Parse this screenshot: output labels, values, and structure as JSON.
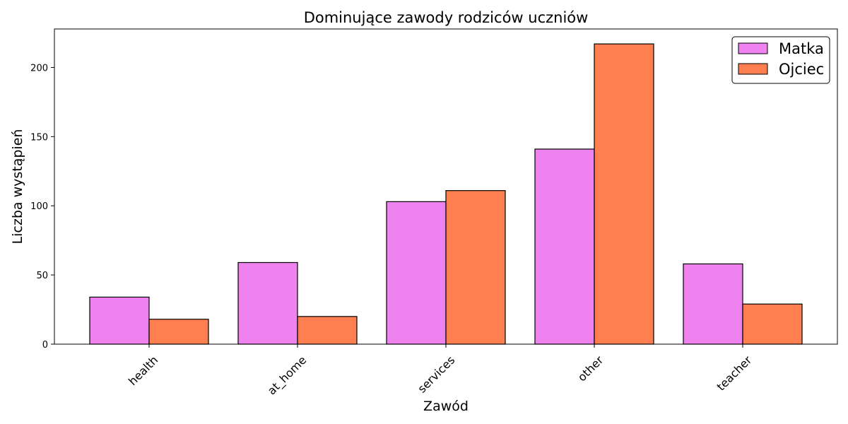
{
  "chart_data": {
    "type": "bar",
    "title": "Dominujące zawody rodziców uczniów",
    "xlabel": "Zawód",
    "ylabel": "Liczba wystąpień",
    "categories": [
      "health",
      "at_home",
      "services",
      "other",
      "teacher"
    ],
    "series": [
      {
        "name": "Matka",
        "values": [
          34,
          59,
          103,
          141,
          58
        ],
        "color": "#ee82ee"
      },
      {
        "name": "Ojciec",
        "values": [
          18,
          20,
          111,
          217,
          29
        ],
        "color": "#ff7f50"
      }
    ],
    "ylim": [
      0,
      227.8
    ],
    "yticks": [
      0,
      50,
      100,
      150,
      200
    ],
    "grid": false,
    "legend_position": "top-right",
    "xtick_rotation": 45
  }
}
